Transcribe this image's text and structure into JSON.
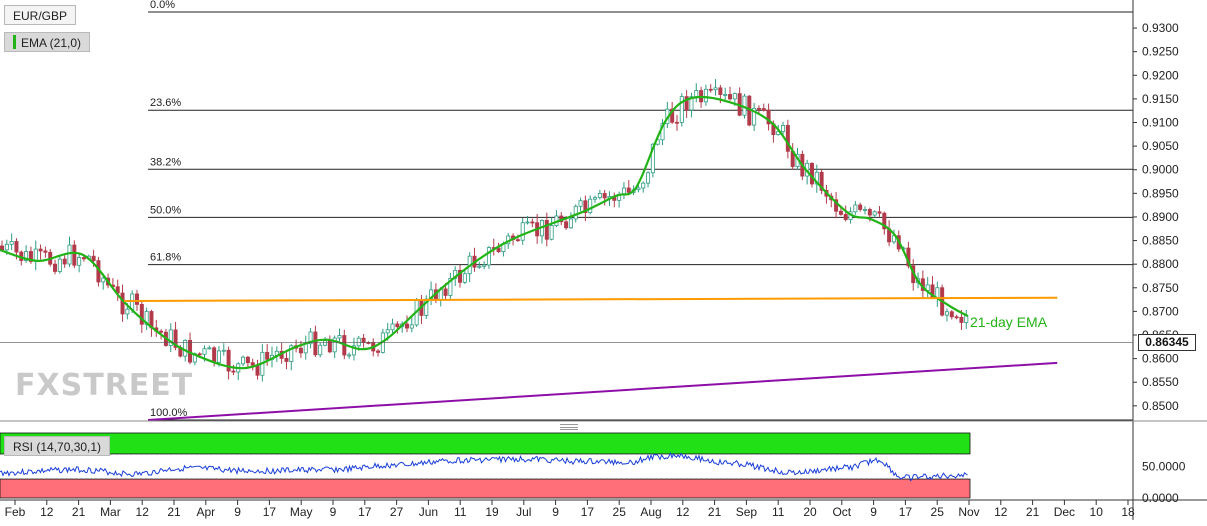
{
  "header": {
    "symbol": "EUR/GBP",
    "indicator": "EMA (21,0)"
  },
  "rsi_panel": {
    "label": "RSI (14,70,30,1)"
  },
  "annotation": {
    "ema_label": "21-day EMA"
  },
  "watermark": "FXSTREET",
  "last_price": "0.86345",
  "colors": {
    "ema": "#22b316",
    "resistance": "#ff9a00",
    "support": "#8e0fa8",
    "rsi_line": "#1a3fd8",
    "overbought": "#22e016",
    "oversold": "#ff6f7a",
    "bull": "#2f9c82",
    "bear": "#b23a4a"
  },
  "chart_data": [
    {
      "type": "candlestick",
      "title": "EUR/GBP",
      "price_axis_ticks": [
        "0.9300",
        "0.9250",
        "0.9200",
        "0.9150",
        "0.9100",
        "0.9050",
        "0.9000",
        "0.8950",
        "0.8900",
        "0.8850",
        "0.8800",
        "0.8750",
        "0.8700",
        "0.8650",
        "0.8600",
        "0.8550",
        "0.8500"
      ],
      "time_axis_ticks": [
        "Feb",
        "12",
        "21",
        "Mar",
        "12",
        "21",
        "Apr",
        "9",
        "17",
        "May",
        "9",
        "17",
        "27",
        "Jun",
        "11",
        "19",
        "Jul",
        "9",
        "17",
        "25",
        "Aug",
        "12",
        "21",
        "Sep",
        "11",
        "20",
        "Oct",
        "9",
        "17",
        "25",
        "Nov",
        "12",
        "21",
        "Dec",
        "10",
        "18"
      ],
      "fibonacci": [
        {
          "label": "0.0%",
          "price": 0.9334
        },
        {
          "label": "23.6%",
          "price": 0.9126
        },
        {
          "label": "38.2%",
          "price": 0.9001
        },
        {
          "label": "50.0%",
          "price": 0.8899
        },
        {
          "label": "61.8%",
          "price": 0.8799
        },
        {
          "label": "100.0%",
          "price": 0.847
        }
      ],
      "ema_keypoints": [
        {
          "date": "2019-01-28",
          "value": 0.883
        },
        {
          "date": "2019-02-08",
          "value": 0.8807
        },
        {
          "date": "2019-02-21",
          "value": 0.882
        },
        {
          "date": "2019-03-05",
          "value": 0.872
        },
        {
          "date": "2019-03-15",
          "value": 0.8655
        },
        {
          "date": "2019-03-25",
          "value": 0.861
        },
        {
          "date": "2019-04-09",
          "value": 0.858
        },
        {
          "date": "2019-04-24",
          "value": 0.8625
        },
        {
          "date": "2019-05-03",
          "value": 0.864
        },
        {
          "date": "2019-05-13",
          "value": 0.862
        },
        {
          "date": "2019-05-20",
          "value": 0.864
        },
        {
          "date": "2019-05-29",
          "value": 0.87
        },
        {
          "date": "2019-06-07",
          "value": 0.876
        },
        {
          "date": "2019-06-18",
          "value": 0.882
        },
        {
          "date": "2019-06-28",
          "value": 0.886
        },
        {
          "date": "2019-07-16",
          "value": 0.891
        },
        {
          "date": "2019-07-26",
          "value": 0.8945
        },
        {
          "date": "2019-07-30",
          "value": 0.895
        },
        {
          "date": "2019-08-02",
          "value": 0.898
        },
        {
          "date": "2019-08-09",
          "value": 0.91
        },
        {
          "date": "2019-08-16",
          "value": 0.915
        },
        {
          "date": "2019-08-27",
          "value": 0.9145
        },
        {
          "date": "2019-09-09",
          "value": 0.91
        },
        {
          "date": "2019-09-19",
          "value": 0.9
        },
        {
          "date": "2019-10-01",
          "value": 0.891
        },
        {
          "date": "2019-10-08",
          "value": 0.8895
        },
        {
          "date": "2019-10-15",
          "value": 0.886
        },
        {
          "date": "2019-10-22",
          "value": 0.876
        },
        {
          "date": "2019-10-30",
          "value": 0.8715
        },
        {
          "date": "2019-11-05",
          "value": 0.869
        }
      ],
      "resistance_line": {
        "start": {
          "date": "2019-03-05",
          "price": 0.8722
        },
        "end": {
          "date": "2019-12-01",
          "price": 0.8729
        }
      },
      "support_line": {
        "start": {
          "date": "2019-03-12",
          "price": 0.847
        },
        "end": {
          "date": "2019-12-01",
          "price": 0.8591
        }
      },
      "last_price": 0.86345
    },
    {
      "type": "line",
      "title": "RSI (14,70,30,1)",
      "y_axis_ticks": [
        "50.0000",
        "0.0000"
      ],
      "levels": {
        "overbought": 70,
        "oversold": 30
      },
      "rsi_keypoints": [
        {
          "date": "2019-01-28",
          "value": 40
        },
        {
          "date": "2019-02-20",
          "value": 45
        },
        {
          "date": "2019-03-08",
          "value": 38
        },
        {
          "date": "2019-03-22",
          "value": 47
        },
        {
          "date": "2019-04-12",
          "value": 43
        },
        {
          "date": "2019-05-06",
          "value": 45
        },
        {
          "date": "2019-05-22",
          "value": 52
        },
        {
          "date": "2019-06-11",
          "value": 60
        },
        {
          "date": "2019-06-29",
          "value": 62
        },
        {
          "date": "2019-07-16",
          "value": 58
        },
        {
          "date": "2019-07-30",
          "value": 57
        },
        {
          "date": "2019-08-06",
          "value": 65
        },
        {
          "date": "2019-08-12",
          "value": 68
        },
        {
          "date": "2019-08-28",
          "value": 55
        },
        {
          "date": "2019-09-16",
          "value": 40
        },
        {
          "date": "2019-10-01",
          "value": 48
        },
        {
          "date": "2019-10-10",
          "value": 60
        },
        {
          "date": "2019-10-17",
          "value": 32
        },
        {
          "date": "2019-10-25",
          "value": 34
        },
        {
          "date": "2019-11-05",
          "value": 37
        }
      ]
    }
  ]
}
